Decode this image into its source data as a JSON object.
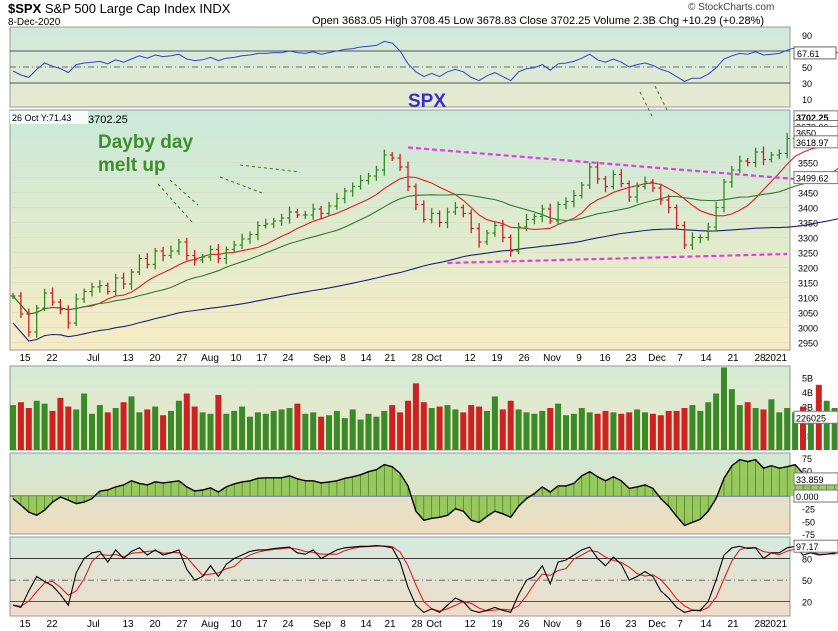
{
  "header": {
    "symbol": "$SPX",
    "name": "S&P 500 Large Cap Index",
    "exchange": "INDX",
    "date": "8-Dec-2020",
    "copyright": "© StockCharts.com",
    "open_label": "Open",
    "open": "3683.05",
    "high_label": "High",
    "high": "3708.45",
    "low_label": "Low",
    "low": "3678.83",
    "close_label": "Close",
    "close": "3702.25",
    "volume_label": "Volume",
    "volume": "2.3B",
    "chg_label": "Chg",
    "chg": "+10.29 (+0.28%)"
  },
  "price_readout": "26 Oct Y:71.43",
  "price_readout_value": "3702.25",
  "annotations": {
    "title": "SPX",
    "note_line1": "Dayby day",
    "note_line2": "melt up"
  },
  "colors": {
    "up": "#2f8a1f",
    "down": "#cc1f1f",
    "ma_fast": "#dd2222",
    "ma_slow": "#2e7d32",
    "ma_long": "#1a237e",
    "trendline": "#e040e0",
    "annotation_green": "#3e8e2f",
    "annotation_blue": "#3333cc",
    "rsi": "#3344cc",
    "macd_fill": "#8bc34a",
    "stoch_k": "#000000",
    "stoch_d": "#e02020"
  },
  "chart_data": {
    "type": "candlestick",
    "x_ticks": [
      "15",
      "22",
      "Jul6",
      "13",
      "20",
      "27",
      "Aug",
      "10",
      "17",
      "24",
      "Sep",
      "8",
      "14",
      "21",
      "28",
      "Oct",
      "12",
      "19",
      "26",
      "Nov",
      "9",
      "16",
      "23",
      "Dec",
      "7",
      "14",
      "21",
      "28",
      "2021"
    ],
    "price_axis": {
      "ylim": [
        2925,
        3725
      ],
      "ticks": [
        "3550",
        "3500",
        "3450",
        "3400",
        "3350",
        "3300",
        "3250",
        "3200",
        "3150",
        "3100",
        "3050",
        "3000",
        "2950"
      ]
    },
    "price_tags": [
      "3702.25",
      "3670.06",
      "3650",
      "3618.97",
      "3499.62"
    ],
    "price_path": [
      3105,
      3045,
      2985,
      3065,
      3115,
      3085,
      3060,
      3015,
      3095,
      3120,
      3135,
      3140,
      3120,
      3165,
      3145,
      3185,
      3230,
      3210,
      3255,
      3240,
      3255,
      3285,
      3240,
      3225,
      3235,
      3260,
      3230,
      3260,
      3275,
      3295,
      3310,
      3340,
      3345,
      3355,
      3365,
      3385,
      3375,
      3375,
      3395,
      3380,
      3405,
      3430,
      3455,
      3470,
      3490,
      3505,
      3525,
      3575,
      3565,
      3535,
      3470,
      3410,
      3360,
      3380,
      3350,
      3385,
      3400,
      3380,
      3330,
      3285,
      3315,
      3340,
      3300,
      3255,
      3335,
      3360,
      3370,
      3395,
      3355,
      3410,
      3420,
      3440,
      3475,
      3535,
      3495,
      3470,
      3510,
      3480,
      3435,
      3470,
      3485,
      3465,
      3425,
      3400,
      3340,
      3275,
      3300,
      3300,
      3335,
      3400,
      3485,
      3525,
      3555,
      3550,
      3585,
      3560,
      3575,
      3580,
      3630,
      3660,
      3620,
      3630,
      3620,
      3620,
      3630,
      3665,
      3665,
      3670,
      3665,
      3690,
      3700,
      3690,
      3702.25
    ],
    "moving_averages": [
      {
        "window": 10,
        "color": "red"
      },
      {
        "window": 20,
        "color": "green"
      },
      {
        "window": 50,
        "color": "blue"
      }
    ],
    "trendlines": [
      {
        "from": [
          50,
          3600
        ],
        "to": [
          106,
          3480
        ]
      },
      {
        "from": [
          55,
          3215
        ],
        "to": [
          98,
          3245
        ]
      }
    ],
    "volume": {
      "axis_ticks": [
        "5B",
        "4B",
        "3B",
        "2B",
        "1B"
      ],
      "current_tag": "226025",
      "ylim": [
        0,
        5.8
      ],
      "values": [
        3.1,
        3.3,
        2.9,
        3.4,
        3.2,
        2.7,
        3.6,
        3.0,
        2.8,
        3.9,
        2.5,
        3.1,
        2.6,
        2.9,
        3.3,
        3.7,
        2.6,
        2.8,
        3.0,
        2.4,
        2.7,
        3.4,
        3.9,
        3.0,
        2.6,
        2.5,
        3.8,
        2.5,
        2.7,
        3.0,
        2.3,
        2.6,
        2.5,
        2.7,
        2.8,
        2.9,
        3.2,
        2.5,
        2.6,
        2.3,
        2.4,
        2.7,
        2.2,
        2.8,
        2.1,
        2.5,
        2.3,
        2.7,
        3.1,
        2.6,
        3.4,
        4.6,
        3.3,
        2.9,
        3.0,
        3.1,
        2.8,
        2.6,
        3.1,
        3.0,
        2.7,
        3.7,
        2.8,
        3.4,
        2.8,
        2.6,
        2.5,
        2.7,
        2.9,
        3.2,
        2.4,
        2.5,
        2.9,
        2.6,
        2.5,
        2.7,
        2.6,
        2.5,
        2.6,
        2.8,
        2.6,
        2.5,
        2.4,
        2.7,
        2.7,
        2.9,
        3.1,
        2.7,
        3.3,
        3.9,
        6.2,
        4.2,
        3.1,
        3.3,
        2.9,
        2.8,
        3.5,
        2.6,
        2.9,
        2.6,
        3.0,
        2.5,
        4.5,
        3.4,
        2.9,
        2.6,
        2.8,
        2.9,
        2.6,
        2.6,
        2.4,
        2.3,
        2.3
      ]
    },
    "macd": {
      "axis_ticks": [
        "75",
        "50",
        "25",
        "0",
        "-25",
        "-50",
        "-75"
      ],
      "current_tags": [
        "33.859",
        "0.000"
      ],
      "ylim": [
        -75,
        85
      ],
      "values": [
        -5,
        -18,
        -32,
        -38,
        -28,
        -12,
        -2,
        -8,
        -15,
        -12,
        -5,
        10,
        12,
        18,
        22,
        30,
        25,
        22,
        28,
        26,
        28,
        30,
        18,
        10,
        12,
        16,
        8,
        18,
        24,
        28,
        30,
        35,
        36,
        36,
        36,
        40,
        34,
        30,
        30,
        26,
        28,
        30,
        35,
        38,
        42,
        48,
        52,
        62,
        58,
        45,
        20,
        -30,
        -48,
        -44,
        -42,
        -38,
        -25,
        -30,
        -48,
        -52,
        -40,
        -30,
        -35,
        -42,
        -20,
        -5,
        5,
        18,
        8,
        20,
        20,
        25,
        40,
        48,
        38,
        30,
        38,
        30,
        15,
        18,
        22,
        15,
        -5,
        -20,
        -40,
        -58,
        -52,
        -46,
        -30,
        -5,
        35,
        60,
        72,
        68,
        72,
        55,
        60,
        55,
        58,
        62,
        45,
        40,
        35,
        30,
        32,
        38,
        35,
        38,
        36,
        38,
        36,
        34,
        33.859
      ]
    },
    "rsi": {
      "axis_ticks": [
        "90",
        "70",
        "50",
        "30",
        "10"
      ],
      "current_tag": "67.61",
      "ylim": [
        0,
        100
      ],
      "values": [
        45,
        40,
        37,
        47,
        55,
        51,
        48,
        43,
        53,
        55,
        56,
        57,
        54,
        59,
        56,
        60,
        64,
        61,
        65,
        63,
        64,
        66,
        60,
        58,
        59,
        62,
        58,
        61,
        62,
        64,
        65,
        67,
        67,
        68,
        68,
        70,
        68,
        67,
        69,
        66,
        68,
        70,
        72,
        73,
        75,
        76,
        77,
        82,
        80,
        70,
        54,
        44,
        38,
        42,
        38,
        44,
        47,
        44,
        37,
        33,
        39,
        43,
        38,
        33,
        44,
        48,
        49,
        53,
        46,
        54,
        55,
        57,
        61,
        66,
        59,
        56,
        60,
        56,
        50,
        53,
        55,
        52,
        47,
        44,
        38,
        32,
        36,
        36,
        41,
        49,
        60,
        64,
        67,
        66,
        69,
        65,
        66,
        67,
        71,
        74,
        67,
        68,
        66,
        66,
        67,
        70,
        70,
        70,
        69,
        71,
        72,
        70,
        67.61
      ]
    },
    "stochastic": {
      "axis_ticks": [
        "80",
        "50",
        "20"
      ],
      "current_tag": "97.17",
      "ylim": [
        0,
        110
      ],
      "k_values": [
        15,
        12,
        35,
        55,
        48,
        42,
        30,
        15,
        60,
        80,
        88,
        90,
        75,
        92,
        80,
        90,
        95,
        85,
        92,
        85,
        88,
        92,
        65,
        50,
        55,
        70,
        55,
        72,
        80,
        85,
        90,
        92,
        92,
        94,
        95,
        96,
        88,
        86,
        92,
        80,
        86,
        92,
        95,
        96,
        97,
        97,
        98,
        97,
        95,
        75,
        40,
        15,
        5,
        10,
        5,
        15,
        25,
        20,
        8,
        5,
        8,
        12,
        8,
        5,
        30,
        50,
        55,
        70,
        45,
        75,
        78,
        85,
        92,
        96,
        80,
        70,
        82,
        72,
        50,
        55,
        62,
        55,
        35,
        25,
        12,
        5,
        8,
        8,
        20,
        50,
        85,
        95,
        97,
        94,
        95,
        80,
        88,
        88,
        95,
        97,
        85,
        88,
        85,
        86,
        88,
        94,
        94,
        95,
        93,
        96,
        97,
        96,
        97.17
      ]
    }
  }
}
